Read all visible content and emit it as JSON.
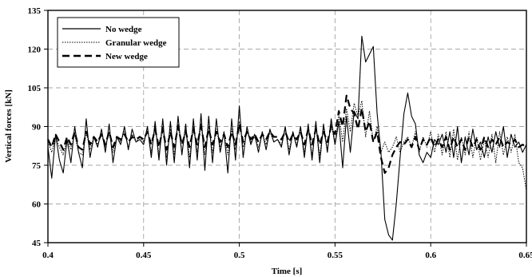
{
  "chart_data": {
    "type": "line",
    "xlabel": "Time [s]",
    "ylabel": "Vertical forces [kN]",
    "xlim": [
      0.4,
      0.65
    ],
    "ylim": [
      45,
      135
    ],
    "xticks": [
      0.4,
      0.45,
      0.5,
      0.55,
      0.6,
      0.65
    ],
    "xtick_labels": [
      "0.4",
      "0.45",
      "0.5",
      "0.55",
      "0.6",
      "0.65"
    ],
    "yticks": [
      45,
      60,
      75,
      90,
      105,
      120,
      135
    ],
    "ytick_labels": [
      "45",
      "60",
      "75",
      "90",
      "105",
      "120",
      "135"
    ],
    "grid": true,
    "legend_position": "top-left",
    "series": [
      {
        "name": "No wedge",
        "style": "solid",
        "color": "#000000",
        "x": [
          0.4,
          0.402,
          0.404,
          0.406,
          0.408,
          0.41,
          0.412,
          0.414,
          0.416,
          0.418,
          0.42,
          0.422,
          0.424,
          0.426,
          0.428,
          0.43,
          0.432,
          0.434,
          0.436,
          0.438,
          0.44,
          0.442,
          0.444,
          0.446,
          0.448,
          0.45,
          0.452,
          0.454,
          0.456,
          0.458,
          0.46,
          0.462,
          0.464,
          0.466,
          0.468,
          0.47,
          0.472,
          0.474,
          0.476,
          0.478,
          0.48,
          0.482,
          0.484,
          0.486,
          0.488,
          0.49,
          0.492,
          0.494,
          0.496,
          0.498,
          0.5,
          0.502,
          0.504,
          0.506,
          0.508,
          0.51,
          0.512,
          0.514,
          0.516,
          0.518,
          0.52,
          0.522,
          0.524,
          0.526,
          0.528,
          0.53,
          0.532,
          0.534,
          0.536,
          0.538,
          0.54,
          0.542,
          0.544,
          0.546,
          0.548,
          0.55,
          0.552,
          0.554,
          0.556,
          0.558,
          0.56,
          0.562,
          0.564,
          0.566,
          0.568,
          0.57,
          0.572,
          0.574,
          0.576,
          0.578,
          0.58,
          0.582,
          0.584,
          0.586,
          0.588,
          0.59,
          0.592,
          0.594,
          0.596,
          0.598,
          0.6,
          0.602,
          0.604,
          0.606,
          0.608,
          0.61,
          0.612,
          0.614,
          0.616,
          0.618,
          0.62,
          0.622,
          0.624,
          0.626,
          0.628,
          0.63,
          0.632,
          0.634,
          0.636,
          0.638,
          0.64,
          0.642,
          0.644,
          0.646,
          0.648,
          0.65
        ],
        "y": [
          82,
          70,
          87,
          77,
          72,
          85,
          76,
          90,
          80,
          74,
          93,
          78,
          86,
          82,
          89,
          80,
          91,
          76,
          86,
          83,
          90,
          81,
          89,
          84,
          85,
          83,
          90,
          78,
          92,
          77,
          93,
          75,
          92,
          76,
          94,
          79,
          91,
          74,
          93,
          77,
          95,
          73,
          94,
          76,
          93,
          80,
          88,
          72,
          93,
          77,
          98,
          78,
          90,
          83,
          87,
          80,
          88,
          81,
          89,
          84,
          85,
          82,
          90,
          79,
          88,
          82,
          90,
          78,
          91,
          77,
          92,
          76,
          91,
          80,
          93,
          83,
          92,
          74,
          94,
          80,
          96,
          93,
          125,
          115,
          118,
          121,
          95,
          80,
          54,
          48,
          46,
          60,
          78,
          95,
          103,
          94,
          91,
          79,
          76,
          80,
          78,
          85,
          83,
          87,
          80,
          88,
          78,
          90,
          76,
          86,
          79,
          89,
          81,
          84,
          78,
          86,
          80,
          88,
          82,
          90,
          78,
          87,
          82,
          84,
          80,
          83
        ]
      },
      {
        "name": "Granular wedge",
        "style": "dotted",
        "color": "#000000",
        "x": [
          0.4,
          0.402,
          0.404,
          0.406,
          0.408,
          0.41,
          0.412,
          0.414,
          0.416,
          0.418,
          0.42,
          0.422,
          0.424,
          0.426,
          0.428,
          0.43,
          0.432,
          0.434,
          0.436,
          0.438,
          0.44,
          0.442,
          0.444,
          0.446,
          0.448,
          0.45,
          0.452,
          0.454,
          0.456,
          0.458,
          0.46,
          0.462,
          0.464,
          0.466,
          0.468,
          0.47,
          0.472,
          0.474,
          0.476,
          0.478,
          0.48,
          0.482,
          0.484,
          0.486,
          0.488,
          0.49,
          0.492,
          0.494,
          0.496,
          0.498,
          0.5,
          0.502,
          0.504,
          0.506,
          0.508,
          0.51,
          0.512,
          0.514,
          0.516,
          0.518,
          0.52,
          0.522,
          0.524,
          0.526,
          0.528,
          0.53,
          0.532,
          0.534,
          0.536,
          0.538,
          0.54,
          0.542,
          0.544,
          0.546,
          0.548,
          0.55,
          0.552,
          0.554,
          0.556,
          0.558,
          0.56,
          0.562,
          0.564,
          0.566,
          0.568,
          0.57,
          0.572,
          0.574,
          0.576,
          0.578,
          0.58,
          0.582,
          0.584,
          0.586,
          0.588,
          0.59,
          0.592,
          0.594,
          0.596,
          0.598,
          0.6,
          0.602,
          0.604,
          0.606,
          0.608,
          0.61,
          0.612,
          0.614,
          0.616,
          0.618,
          0.62,
          0.622,
          0.624,
          0.626,
          0.628,
          0.63,
          0.632,
          0.634,
          0.636,
          0.638,
          0.64,
          0.642,
          0.644,
          0.646,
          0.648,
          0.65
        ],
        "y": [
          84,
          80,
          86,
          82,
          79,
          85,
          81,
          87,
          80,
          79,
          88,
          81,
          86,
          83,
          87,
          82,
          88,
          80,
          86,
          84,
          88,
          82,
          87,
          84,
          86,
          84,
          89,
          80,
          90,
          79,
          90,
          78,
          89,
          79,
          91,
          80,
          89,
          78,
          90,
          80,
          91,
          79,
          90,
          80,
          89,
          82,
          87,
          79,
          89,
          81,
          92,
          82,
          88,
          84,
          86,
          82,
          87,
          83,
          88,
          84,
          85,
          83,
          89,
          81,
          87,
          83,
          89,
          80,
          90,
          79,
          90,
          79,
          89,
          81,
          91,
          83,
          95,
          84,
          97,
          88,
          99,
          94,
          100,
          86,
          96,
          84,
          90,
          80,
          84,
          80,
          82,
          86,
          80,
          84,
          86,
          82,
          88,
          80,
          86,
          82,
          88,
          80,
          87,
          79,
          88,
          78,
          89,
          77,
          86,
          79,
          88,
          78,
          86,
          77,
          85,
          78,
          87,
          76,
          88,
          79,
          86,
          80,
          87,
          76,
          74,
          65
        ]
      },
      {
        "name": "New wedge",
        "style": "dashed",
        "color": "#000000",
        "x": [
          0.4,
          0.402,
          0.404,
          0.406,
          0.408,
          0.41,
          0.412,
          0.414,
          0.416,
          0.418,
          0.42,
          0.422,
          0.424,
          0.426,
          0.428,
          0.43,
          0.432,
          0.434,
          0.436,
          0.438,
          0.44,
          0.442,
          0.444,
          0.446,
          0.448,
          0.45,
          0.452,
          0.454,
          0.456,
          0.458,
          0.46,
          0.462,
          0.464,
          0.466,
          0.468,
          0.47,
          0.472,
          0.474,
          0.476,
          0.478,
          0.48,
          0.482,
          0.484,
          0.486,
          0.488,
          0.49,
          0.492,
          0.494,
          0.496,
          0.498,
          0.5,
          0.502,
          0.504,
          0.506,
          0.508,
          0.51,
          0.512,
          0.514,
          0.516,
          0.518,
          0.52,
          0.522,
          0.524,
          0.526,
          0.528,
          0.53,
          0.532,
          0.534,
          0.536,
          0.538,
          0.54,
          0.542,
          0.544,
          0.546,
          0.548,
          0.55,
          0.552,
          0.554,
          0.556,
          0.558,
          0.56,
          0.562,
          0.564,
          0.566,
          0.568,
          0.57,
          0.572,
          0.574,
          0.576,
          0.578,
          0.58,
          0.582,
          0.584,
          0.586,
          0.588,
          0.59,
          0.592,
          0.594,
          0.596,
          0.598,
          0.6,
          0.602,
          0.604,
          0.606,
          0.608,
          0.61,
          0.612,
          0.614,
          0.616,
          0.618,
          0.62,
          0.622,
          0.624,
          0.626,
          0.628,
          0.63,
          0.632,
          0.634,
          0.636,
          0.638,
          0.64,
          0.642,
          0.644,
          0.646,
          0.648,
          0.65
        ],
        "y": [
          85,
          82,
          87,
          84,
          81,
          86,
          83,
          88,
          82,
          81,
          88,
          83,
          86,
          84,
          87,
          83,
          88,
          82,
          86,
          85,
          87,
          84,
          86,
          85,
          86,
          85,
          88,
          83,
          89,
          82,
          89,
          81,
          88,
          82,
          90,
          83,
          88,
          82,
          89,
          83,
          90,
          82,
          89,
          83,
          88,
          84,
          87,
          82,
          88,
          83,
          91,
          84,
          88,
          85,
          87,
          84,
          87,
          85,
          88,
          86,
          86,
          85,
          88,
          84,
          87,
          85,
          88,
          83,
          89,
          83,
          89,
          83,
          88,
          84,
          90,
          87,
          96,
          90,
          102,
          97,
          95,
          89,
          97,
          88,
          92,
          84,
          88,
          78,
          72,
          74,
          79,
          82,
          84,
          83,
          85,
          82,
          86,
          81,
          85,
          83,
          86,
          82,
          85,
          82,
          86,
          81,
          86,
          82,
          85,
          81,
          86,
          82,
          85,
          81,
          86,
          82,
          85,
          83,
          86,
          82,
          84,
          83,
          85,
          82,
          83,
          82
        ]
      }
    ]
  }
}
